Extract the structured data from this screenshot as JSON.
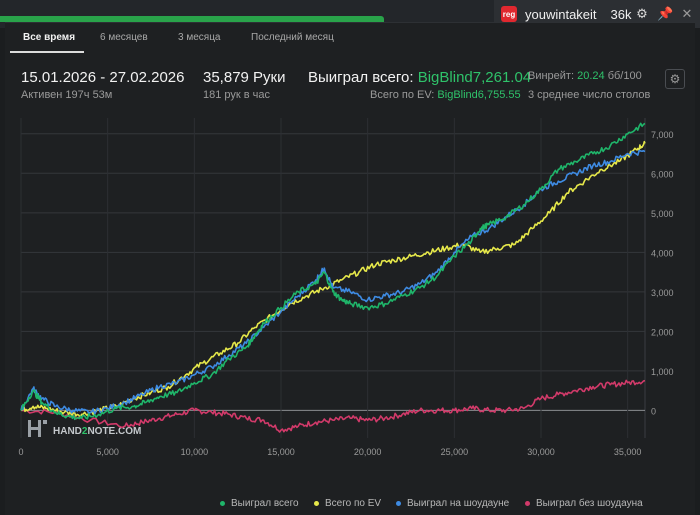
{
  "user": {
    "badge": "reg",
    "name": "youwintakeit",
    "hands": "36k"
  },
  "tabs": [
    {
      "label": "Все время",
      "active": true
    },
    {
      "label": "6 месяцев",
      "active": false
    },
    {
      "label": "3 месяца",
      "active": false
    },
    {
      "label": "Последний месяц",
      "active": false
    }
  ],
  "stats": {
    "date_range": "15.01.2026 - 27.02.2026",
    "active_time": "Активен 197ч 53м",
    "hands_label": "35,879 Руки",
    "hands_per_hour": "181 рук в час",
    "won_total_label": "Выиграл всего:",
    "won_total_value": "BigBlind7,261.04",
    "ev_total_label": "Всего по EV:",
    "ev_total_value": "BigBlind6,755.55",
    "winrate_label": "Винрейт:",
    "winrate_value": "20.24",
    "winrate_unit": "бб/100",
    "avg_tables": "3 среднее число столов"
  },
  "watermark": {
    "part1": "HAND",
    "part2": "2",
    "part3": "NOTE.COM"
  },
  "colors": {
    "won": "#1fb56a",
    "ev": "#e6e84a",
    "showdown": "#3e8be3",
    "non_showdown": "#d23a6a",
    "accent_green": "#2fc26a"
  },
  "icons": {
    "settings": "gear-icon",
    "pin": "pin-icon",
    "close": "close-icon"
  },
  "chart_data": {
    "type": "line",
    "xlabel": "",
    "ylabel": "",
    "xlim": [
      0,
      36000
    ],
    "ylim": [
      -700,
      7400
    ],
    "x_ticks": [
      "0",
      "5,000",
      "10,000",
      "15,000",
      "20,000",
      "25,000",
      "30,000",
      "35,000"
    ],
    "y_ticks": [
      "0",
      "1,000",
      "2,000",
      "3,000",
      "4,000",
      "5,000",
      "6,000",
      "7,000"
    ],
    "legend_position": "bottom-right",
    "grid": true,
    "series": [
      {
        "name": "Выиграл всего",
        "color": "#1fb56a",
        "x": [
          0,
          700,
          1200,
          2000,
          2700,
          3500,
          4500,
          5500,
          6500,
          7200,
          8000,
          9000,
          10000,
          11000,
          12000,
          13000,
          13500,
          14000,
          15000,
          16000,
          17000,
          17500,
          18000,
          18500,
          19000,
          20000,
          21000,
          22000,
          23000,
          24000,
          25000,
          26000,
          26500,
          27000,
          28000,
          29000,
          30000,
          31000,
          32000,
          33000,
          34000,
          35000,
          36000
        ],
        "y": [
          0,
          500,
          200,
          -50,
          -150,
          -200,
          -100,
          50,
          100,
          200,
          350,
          450,
          700,
          900,
          1300,
          1600,
          1900,
          2200,
          2600,
          3000,
          3200,
          3500,
          3000,
          2800,
          2700,
          2600,
          2700,
          2900,
          3100,
          3400,
          3900,
          4300,
          4600,
          4700,
          4900,
          5200,
          5600,
          6100,
          6300,
          6500,
          6700,
          7000,
          7261
        ]
      },
      {
        "name": "Всего по EV",
        "color": "#e6e84a",
        "x": [
          0,
          700,
          1500,
          2500,
          3500,
          4500,
          5500,
          6500,
          7500,
          8500,
          9500,
          10500,
          11500,
          12500,
          13500,
          14500,
          15500,
          16500,
          17500,
          18500,
          19500,
          20500,
          21500,
          22500,
          23500,
          24500,
          25500,
          26500,
          27500,
          28500,
          29500,
          30500,
          31500,
          32500,
          33500,
          34500,
          35500,
          36000
        ],
        "y": [
          0,
          100,
          50,
          -50,
          -100,
          0,
          100,
          300,
          450,
          600,
          900,
          1200,
          1450,
          1700,
          2100,
          2400,
          2700,
          2900,
          3100,
          3300,
          3500,
          3700,
          3800,
          3900,
          4000,
          4100,
          4200,
          4000,
          4100,
          4200,
          4600,
          5000,
          5500,
          5800,
          6100,
          6300,
          6600,
          6756
        ]
      },
      {
        "name": "Выиграл на шоудауне",
        "color": "#3e8be3",
        "x": [
          0,
          700,
          1200,
          2000,
          3000,
          4000,
          5000,
          6000,
          7000,
          8000,
          9000,
          10000,
          11000,
          12000,
          13000,
          14000,
          15000,
          16000,
          17000,
          17500,
          18000,
          19000,
          20000,
          21000,
          22000,
          23000,
          24000,
          25000,
          26000,
          27000,
          28000,
          29000,
          30000,
          31000,
          32000,
          33000,
          34000,
          35000,
          36000
        ],
        "y": [
          0,
          550,
          300,
          100,
          0,
          -50,
          50,
          200,
          400,
          600,
          700,
          900,
          1100,
          1400,
          1700,
          2100,
          2500,
          2900,
          3300,
          3600,
          3100,
          3000,
          2800,
          2900,
          3000,
          3200,
          3500,
          4000,
          4400,
          4600,
          4900,
          5200,
          5600,
          5800,
          6000,
          6200,
          6300,
          6500,
          6550
        ]
      },
      {
        "name": "Выиграл без шоудауна",
        "color": "#d23a6a",
        "x": [
          0,
          2000,
          4000,
          6000,
          7000,
          8000,
          9000,
          10000,
          11000,
          12000,
          13000,
          14000,
          15000,
          16000,
          17000,
          18000,
          19000,
          20000,
          21000,
          22000,
          23000,
          24000,
          25000,
          26000,
          27000,
          28000,
          29000,
          30000,
          31000,
          32000,
          33000,
          34000,
          35000,
          36000
        ],
        "y": [
          0,
          -50,
          -250,
          -400,
          -300,
          -200,
          -100,
          0,
          -50,
          -100,
          -200,
          -250,
          -500,
          -400,
          -300,
          -250,
          -200,
          -250,
          -200,
          -100,
          0,
          0,
          0,
          50,
          0,
          0,
          50,
          300,
          400,
          500,
          600,
          650,
          700,
          750
        ]
      }
    ]
  }
}
